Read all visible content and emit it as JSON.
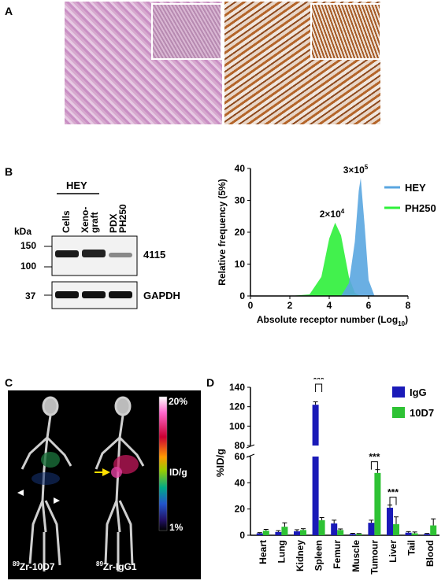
{
  "panels": {
    "A": "A",
    "B": "B",
    "C": "C",
    "D": "D"
  },
  "western_blot": {
    "group_label": "HEY",
    "lanes": [
      "Cells",
      "Xeno-\ngraft",
      "PDX\nPH250"
    ],
    "kda_label": "kDa",
    "markers": [
      "150",
      "100",
      "37"
    ],
    "bands": [
      "4115",
      "GAPDH"
    ]
  },
  "imaging": {
    "scale_top": "20%",
    "scale_mid": "ID/g",
    "scale_bottom": "1%",
    "left_label_sup": "89",
    "left_label": "Zr-10D7",
    "right_label_sup": "89",
    "right_label": "Zr-IgG1"
  },
  "chart_data": [
    {
      "type": "area",
      "xlabel": "Absolute receptor number (Log10)",
      "ylabel": "Relative frequency (5%)",
      "xlim": [
        0,
        8
      ],
      "ylim": [
        0,
        40
      ],
      "xticks": [
        0,
        2,
        4,
        6,
        8
      ],
      "yticks": [
        0,
        10,
        20,
        30,
        40
      ],
      "legend_position": "top-right",
      "series": [
        {
          "name": "HEY",
          "color": "#5aa6e0",
          "x": [
            4.6,
            5.0,
            5.3,
            5.5,
            5.6,
            5.8,
            6.0,
            6.3
          ],
          "y": [
            0,
            4,
            17,
            33,
            37,
            22,
            5,
            0
          ]
        },
        {
          "name": "PH250",
          "color": "#2ef03a",
          "x": [
            2.0,
            3.0,
            3.6,
            4.0,
            4.3,
            4.6,
            5.0,
            5.3,
            5.6
          ],
          "y": [
            0,
            0.5,
            6,
            18,
            23,
            19,
            6,
            1,
            0
          ]
        }
      ],
      "annotations": [
        {
          "text": "3×10",
          "sup": "5",
          "x": 5.5
        },
        {
          "text": "2×10",
          "sup": "4",
          "x": 4.3
        }
      ]
    },
    {
      "type": "bar",
      "ylabel": "%ID/g",
      "categories": [
        "Heart",
        "Lung",
        "Kidney",
        "Spleen",
        "Femur",
        "Muscle",
        "Tumour",
        "Liver",
        "Tail",
        "Blood"
      ],
      "ylim_lower": [
        0,
        60
      ],
      "ylim_upper": [
        80,
        140
      ],
      "yticks_lower": [
        0,
        20,
        40,
        60
      ],
      "yticks_upper": [
        80,
        100,
        120,
        140
      ],
      "legend_position": "top-right",
      "series": [
        {
          "name": "IgG",
          "color": "#1a1ab8",
          "values": [
            1.5,
            2.5,
            3.0,
            122,
            9.0,
            1.0,
            9.5,
            21,
            2.0,
            1.0
          ],
          "errors": [
            0.5,
            1.0,
            1.2,
            3.0,
            2.5,
            0.5,
            2.0,
            2.0,
            0.8,
            0.4
          ]
        },
        {
          "name": "10D7",
          "color": "#2ec234",
          "values": [
            3.5,
            6.5,
            4.0,
            11.5,
            4.0,
            1.0,
            47.5,
            8.5,
            1.5,
            7.5
          ],
          "errors": [
            1.0,
            3.0,
            1.0,
            2.0,
            0.8,
            0.3,
            2.5,
            5.5,
            1.0,
            5.0
          ]
        }
      ],
      "significance": [
        {
          "category": "Spleen",
          "label": "***"
        },
        {
          "category": "Tumour",
          "label": "***"
        },
        {
          "category": "Liver",
          "label": "***"
        }
      ]
    }
  ]
}
